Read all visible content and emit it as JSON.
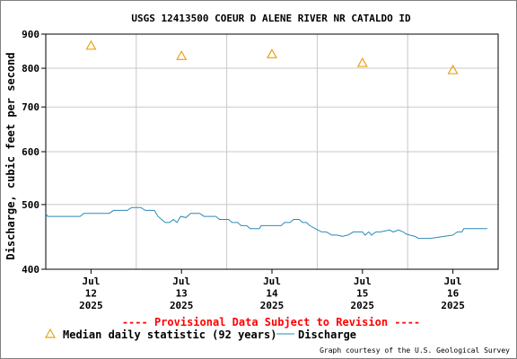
{
  "chart_data": {
    "type": "line",
    "title": "USGS 12413500 COEUR D ALENE RIVER NR CATALDO ID",
    "ylabel": "Discharge, cubic feet per second",
    "xlabel": "",
    "y_scale": "log",
    "ylim": [
      400,
      900
    ],
    "y_ticks": [
      400,
      500,
      600,
      700,
      800,
      900
    ],
    "x_ticks": [
      {
        "line1": "Jul",
        "line2": "12",
        "line3": "2025",
        "day": 12.0
      },
      {
        "line1": "Jul",
        "line2": "13",
        "line3": "2025",
        "day": 13.0
      },
      {
        "line1": "Jul",
        "line2": "14",
        "line3": "2025",
        "day": 14.0
      },
      {
        "line1": "Jul",
        "line2": "15",
        "line3": "2025",
        "day": 15.0
      },
      {
        "line1": "Jul",
        "line2": "16",
        "line3": "2025",
        "day": 16.0
      }
    ],
    "xlim": [
      11.5,
      16.5
    ],
    "grid": true,
    "series": [
      {
        "name": "Median daily statistic (92 years)",
        "marker": "triangle",
        "color": "#e8a317",
        "x": [
          12.0,
          13.0,
          14.0,
          15.0,
          16.0
        ],
        "y": [
          865,
          835,
          840,
          815,
          795
        ]
      },
      {
        "name": "Discharge",
        "style": "line",
        "color": "#2a8ab8",
        "x": [
          11.5,
          11.52,
          11.88,
          11.92,
          12.2,
          12.25,
          12.4,
          12.45,
          12.55,
          12.6,
          12.7,
          12.74,
          12.78,
          12.82,
          12.87,
          12.91,
          12.95,
          12.99,
          13.05,
          13.1,
          13.2,
          13.25,
          13.38,
          13.42,
          13.52,
          13.56,
          13.62,
          13.66,
          13.72,
          13.76,
          13.82,
          13.86,
          13.88,
          13.92,
          14.1,
          14.14,
          14.2,
          14.24,
          14.3,
          14.34,
          14.38,
          14.42,
          14.48,
          14.55,
          14.6,
          14.66,
          14.72,
          14.78,
          14.84,
          14.9,
          15.0,
          15.03,
          15.07,
          15.1,
          15.15,
          15.2,
          15.3,
          15.34,
          15.4,
          15.45,
          15.48,
          15.52,
          15.58,
          15.62,
          15.7,
          15.75,
          16.0,
          16.05,
          16.1,
          16.12,
          16.18,
          16.25,
          16.38
        ],
        "y": [
          485,
          480,
          480,
          485,
          485,
          490,
          490,
          495,
          495,
          490,
          490,
          480,
          475,
          470,
          470,
          475,
          470,
          480,
          478,
          485,
          485,
          480,
          480,
          475,
          475,
          470,
          470,
          465,
          465,
          460,
          460,
          460,
          465,
          465,
          465,
          470,
          470,
          475,
          475,
          470,
          470,
          465,
          460,
          455,
          455,
          450,
          450,
          448,
          450,
          455,
          455,
          450,
          455,
          450,
          455,
          455,
          458,
          455,
          458,
          455,
          452,
          450,
          448,
          445,
          445,
          445,
          450,
          455,
          455,
          460,
          460,
          460,
          460
        ]
      }
    ],
    "notice": "---- Provisional Data Subject to Revision ----",
    "credit": "Graph courtesy of the U.S. Geological Survey",
    "colors": {
      "axis": "#000000",
      "grid": "#c8c8c8",
      "notice": "#ff0000"
    }
  }
}
